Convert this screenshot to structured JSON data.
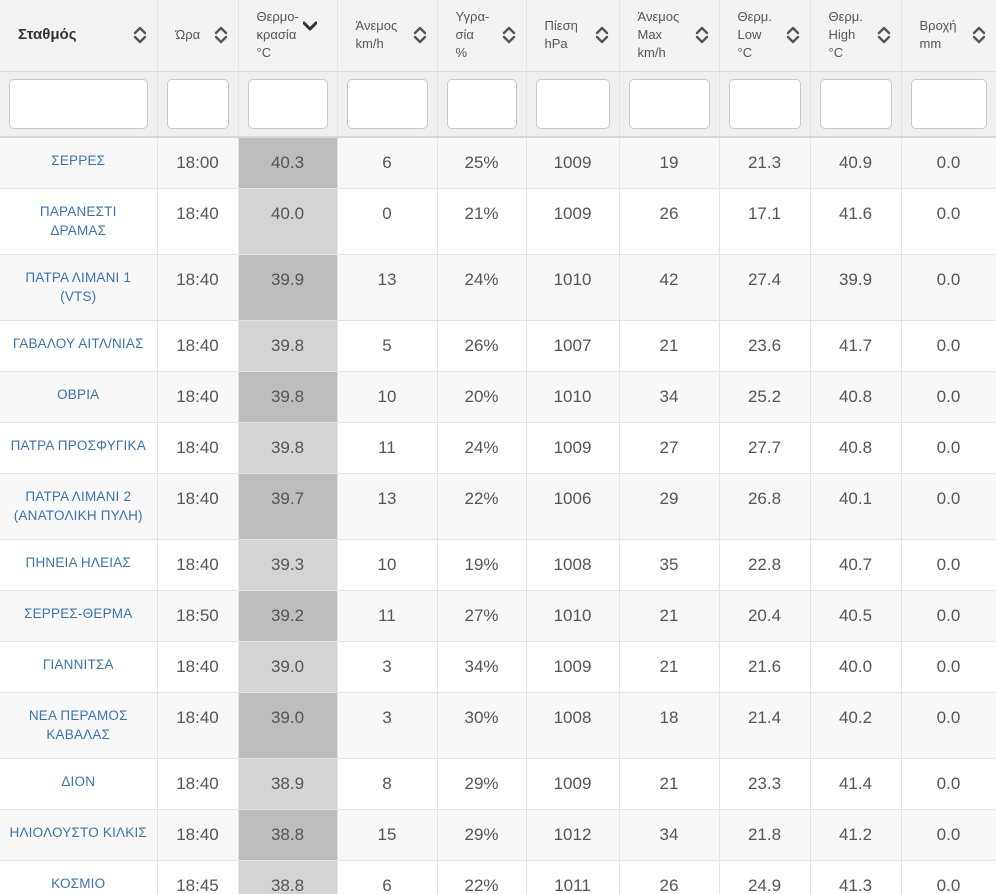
{
  "headers": [
    {
      "lines": [
        "Σταθμός"
      ],
      "bold": true,
      "sort": "both"
    },
    {
      "lines": [
        "Ώρα"
      ],
      "sort": "both"
    },
    {
      "lines": [
        "Θερμο-",
        "κρασία",
        "°C"
      ],
      "sort": "down"
    },
    {
      "lines": [
        "Άνεμος",
        "km/h"
      ],
      "sort": "both"
    },
    {
      "lines": [
        "Υγρα-",
        "σία",
        "%"
      ],
      "sort": "both"
    },
    {
      "lines": [
        "Πίεση",
        "hPa"
      ],
      "sort": "both"
    },
    {
      "lines": [
        "Άνεμος",
        "Max",
        "km/h"
      ],
      "sort": "both"
    },
    {
      "lines": [
        "Θερμ.",
        "Low",
        "°C"
      ],
      "sort": "both"
    },
    {
      "lines": [
        "Θερμ.",
        "High",
        "°C"
      ],
      "sort": "both"
    },
    {
      "lines": [
        "Βροχή",
        "mm"
      ],
      "sort": "both"
    }
  ],
  "filters": [
    "",
    "",
    "",
    "",
    "",
    "",
    "",
    "",
    "",
    ""
  ],
  "rows": [
    {
      "station": [
        "ΣΕΡΡΕΣ"
      ],
      "time": "18:00",
      "temp": "40.3",
      "wind": "6",
      "hum": "25%",
      "press": "1009",
      "wmax": "19",
      "tlow": "21.3",
      "thigh": "40.9",
      "rain": "0.0"
    },
    {
      "station": [
        "ΠΑΡΑΝΕΣΤΙ",
        "ΔΡΑΜΑΣ"
      ],
      "time": "18:40",
      "temp": "40.0",
      "wind": "0",
      "hum": "21%",
      "press": "1009",
      "wmax": "26",
      "tlow": "17.1",
      "thigh": "41.6",
      "rain": "0.0"
    },
    {
      "station": [
        "ΠΑΤΡΑ ΛΙΜΑΝΙ 1",
        "(VTS)"
      ],
      "time": "18:40",
      "temp": "39.9",
      "wind": "13",
      "hum": "24%",
      "press": "1010",
      "wmax": "42",
      "tlow": "27.4",
      "thigh": "39.9",
      "rain": "0.0"
    },
    {
      "station": [
        "ΓΑΒΑΛΟΥ ΑΙΤΛ/ΝΙΑΣ"
      ],
      "time": "18:40",
      "temp": "39.8",
      "wind": "5",
      "hum": "26%",
      "press": "1007",
      "wmax": "21",
      "tlow": "23.6",
      "thigh": "41.7",
      "rain": "0.0"
    },
    {
      "station": [
        "ΟΒΡΙΑ"
      ],
      "time": "18:40",
      "temp": "39.8",
      "wind": "10",
      "hum": "20%",
      "press": "1010",
      "wmax": "34",
      "tlow": "25.2",
      "thigh": "40.8",
      "rain": "0.0"
    },
    {
      "station": [
        "ΠΑΤΡΑ ΠΡΟΣΦΥΓΙΚΑ"
      ],
      "time": "18:40",
      "temp": "39.8",
      "wind": "11",
      "hum": "24%",
      "press": "1009",
      "wmax": "27",
      "tlow": "27.7",
      "thigh": "40.8",
      "rain": "0.0"
    },
    {
      "station": [
        "ΠΑΤΡΑ ΛΙΜΑΝΙ 2",
        "(ΑΝΑΤΟΛΙΚΗ ΠΥΛΗ)"
      ],
      "time": "18:40",
      "temp": "39.7",
      "wind": "13",
      "hum": "22%",
      "press": "1006",
      "wmax": "29",
      "tlow": "26.8",
      "thigh": "40.1",
      "rain": "0.0"
    },
    {
      "station": [
        "ΠΗΝΕΙΑ ΗΛΕΙΑΣ"
      ],
      "time": "18:40",
      "temp": "39.3",
      "wind": "10",
      "hum": "19%",
      "press": "1008",
      "wmax": "35",
      "tlow": "22.8",
      "thigh": "40.7",
      "rain": "0.0"
    },
    {
      "station": [
        "ΣΕΡΡΕΣ-ΘΕΡΜΑ"
      ],
      "time": "18:50",
      "temp": "39.2",
      "wind": "11",
      "hum": "27%",
      "press": "1010",
      "wmax": "21",
      "tlow": "20.4",
      "thigh": "40.5",
      "rain": "0.0"
    },
    {
      "station": [
        "ΓΙΑΝΝΙΤΣΑ"
      ],
      "time": "18:40",
      "temp": "39.0",
      "wind": "3",
      "hum": "34%",
      "press": "1009",
      "wmax": "21",
      "tlow": "21.6",
      "thigh": "40.0",
      "rain": "0.0"
    },
    {
      "station": [
        "ΝΕΑ ΠΕΡΑΜΟΣ",
        "ΚΑΒΑΛΑΣ"
      ],
      "time": "18:40",
      "temp": "39.0",
      "wind": "3",
      "hum": "30%",
      "press": "1008",
      "wmax": "18",
      "tlow": "21.4",
      "thigh": "40.2",
      "rain": "0.0"
    },
    {
      "station": [
        "ΔΙΟΝ"
      ],
      "time": "18:40",
      "temp": "38.9",
      "wind": "8",
      "hum": "29%",
      "press": "1009",
      "wmax": "21",
      "tlow": "23.3",
      "thigh": "41.4",
      "rain": "0.0"
    },
    {
      "station": [
        "ΗΛΙΟΛΟΥΣΤΟ ΚΙΛΚΙΣ"
      ],
      "time": "18:40",
      "temp": "38.8",
      "wind": "15",
      "hum": "29%",
      "press": "1012",
      "wmax": "34",
      "tlow": "21.8",
      "thigh": "41.2",
      "rain": "0.0"
    },
    {
      "station": [
        "ΚΟΣΜΙΟ"
      ],
      "time": "18:45",
      "temp": "38.8",
      "wind": "6",
      "hum": "22%",
      "press": "1011",
      "wmax": "26",
      "tlow": "24.9",
      "thigh": "41.3",
      "rain": "0.0"
    }
  ]
}
